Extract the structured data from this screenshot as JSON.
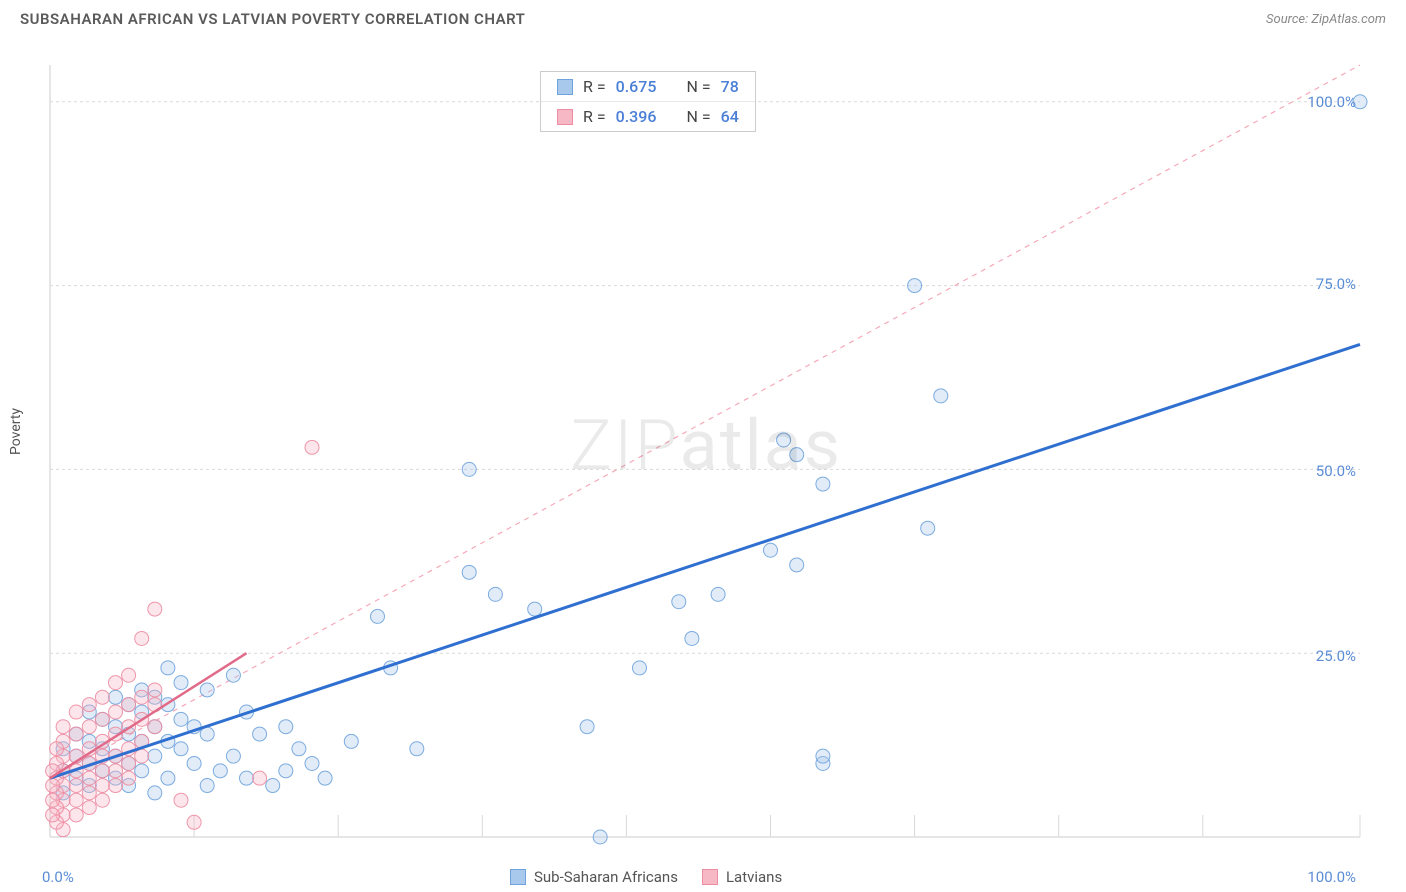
{
  "title": "SUBSAHARAN AFRICAN VS LATVIAN POVERTY CORRELATION CHART",
  "source": "Source: ZipAtlas.com",
  "y_axis_label": "Poverty",
  "watermark": "ZIPatlas",
  "chart": {
    "type": "scatter",
    "xlim": [
      0,
      100
    ],
    "ylim": [
      0,
      105
    ],
    "x_tick_labels": {
      "0": "0.0%",
      "100": "100.0%"
    },
    "y_tick_labels": {
      "25": "25.0%",
      "50": "50.0%",
      "75": "75.0%",
      "100": "100.0%"
    },
    "grid_y": [
      25,
      50,
      75,
      100
    ],
    "grid_x": [
      11,
      22,
      33,
      44,
      55,
      66,
      77,
      88,
      100
    ],
    "grid_color": "#d9d9d9",
    "grid_dash": "3,3",
    "axis_color": "#cccccc",
    "background_color": "#ffffff",
    "marker_radius": 7,
    "marker_fill_opacity": 0.35,
    "marker_stroke_opacity": 0.9,
    "marker_stroke_width": 1,
    "diagonal_reference": {
      "color": "#f5a9b8",
      "dash": "5,5",
      "width": 1.2
    },
    "tick_label_color": "#5a8dd6",
    "tick_label_fontsize": 15
  },
  "series": [
    {
      "key": "ssa",
      "label": "Sub-Saharan Africans",
      "color_fill": "#a8c8ec",
      "color_stroke": "#6fa3dd",
      "n": 78,
      "r": 0.675,
      "regression": {
        "x1": 0,
        "y1": 8,
        "x2": 100,
        "y2": 67,
        "color": "#2f6fd0",
        "width": 3,
        "dash": ""
      },
      "points": [
        [
          100,
          100
        ],
        [
          66,
          75
        ],
        [
          68,
          60
        ],
        [
          67,
          42
        ],
        [
          59,
          48
        ],
        [
          56,
          54
        ],
        [
          57,
          52
        ],
        [
          57,
          37
        ],
        [
          55,
          39
        ],
        [
          51,
          33
        ],
        [
          49,
          27
        ],
        [
          48,
          32
        ],
        [
          45,
          23
        ],
        [
          41,
          15
        ],
        [
          37,
          31
        ],
        [
          34,
          33
        ],
        [
          32,
          36
        ],
        [
          32,
          50
        ],
        [
          26,
          23
        ],
        [
          25,
          30
        ],
        [
          23,
          13
        ],
        [
          21,
          8
        ],
        [
          20,
          10
        ],
        [
          19,
          12
        ],
        [
          18,
          15
        ],
        [
          18,
          9
        ],
        [
          17,
          7
        ],
        [
          16,
          14
        ],
        [
          15,
          17
        ],
        [
          15,
          8
        ],
        [
          14,
          22
        ],
        [
          14,
          11
        ],
        [
          13,
          9
        ],
        [
          12,
          20
        ],
        [
          12,
          14
        ],
        [
          12,
          7
        ],
        [
          11,
          15
        ],
        [
          11,
          10
        ],
        [
          10,
          21
        ],
        [
          10,
          16
        ],
        [
          10,
          12
        ],
        [
          9,
          23
        ],
        [
          9,
          18
        ],
        [
          9,
          13
        ],
        [
          9,
          8
        ],
        [
          8,
          19
        ],
        [
          8,
          15
        ],
        [
          8,
          11
        ],
        [
          8,
          6
        ],
        [
          7,
          20
        ],
        [
          7,
          17
        ],
        [
          7,
          13
        ],
        [
          7,
          9
        ],
        [
          6,
          18
        ],
        [
          6,
          14
        ],
        [
          6,
          10
        ],
        [
          6,
          7
        ],
        [
          5,
          19
        ],
        [
          5,
          15
        ],
        [
          5,
          11
        ],
        [
          5,
          8
        ],
        [
          4,
          16
        ],
        [
          4,
          12
        ],
        [
          4,
          9
        ],
        [
          3,
          17
        ],
        [
          3,
          13
        ],
        [
          3,
          10
        ],
        [
          3,
          7
        ],
        [
          2,
          14
        ],
        [
          2,
          11
        ],
        [
          2,
          8
        ],
        [
          1,
          12
        ],
        [
          1,
          9
        ],
        [
          1,
          6
        ],
        [
          59,
          10
        ],
        [
          59,
          11
        ],
        [
          42,
          0
        ],
        [
          28,
          12
        ]
      ]
    },
    {
      "key": "lat",
      "label": "Latvians",
      "color_fill": "#f6b8c5",
      "color_stroke": "#ed8ca2",
      "n": 64,
      "r": 0.396,
      "regression": {
        "x1": 0,
        "y1": 8,
        "x2": 15,
        "y2": 25,
        "color": "#e06a88",
        "width": 2.5,
        "dash": ""
      },
      "points": [
        [
          20,
          53
        ],
        [
          16,
          8
        ],
        [
          11,
          2
        ],
        [
          10,
          5
        ],
        [
          8,
          31
        ],
        [
          8,
          20
        ],
        [
          8,
          18
        ],
        [
          8,
          15
        ],
        [
          7,
          27
        ],
        [
          7,
          19
        ],
        [
          7,
          16
        ],
        [
          7,
          13
        ],
        [
          7,
          11
        ],
        [
          6,
          22
        ],
        [
          6,
          18
        ],
        [
          6,
          15
        ],
        [
          6,
          12
        ],
        [
          6,
          10
        ],
        [
          6,
          8
        ],
        [
          5,
          21
        ],
        [
          5,
          17
        ],
        [
          5,
          14
        ],
        [
          5,
          11
        ],
        [
          5,
          9
        ],
        [
          5,
          7
        ],
        [
          4,
          19
        ],
        [
          4,
          16
        ],
        [
          4,
          13
        ],
        [
          4,
          11
        ],
        [
          4,
          9
        ],
        [
          4,
          7
        ],
        [
          4,
          5
        ],
        [
          3,
          18
        ],
        [
          3,
          15
        ],
        [
          3,
          12
        ],
        [
          3,
          10
        ],
        [
          3,
          8
        ],
        [
          3,
          6
        ],
        [
          3,
          4
        ],
        [
          2,
          17
        ],
        [
          2,
          14
        ],
        [
          2,
          11
        ],
        [
          2,
          9
        ],
        [
          2,
          7
        ],
        [
          2,
          5
        ],
        [
          2,
          3
        ],
        [
          1,
          15
        ],
        [
          1,
          13
        ],
        [
          1,
          11
        ],
        [
          1,
          9
        ],
        [
          1,
          7
        ],
        [
          1,
          5
        ],
        [
          1,
          3
        ],
        [
          1,
          1
        ],
        [
          0.5,
          12
        ],
        [
          0.5,
          10
        ],
        [
          0.5,
          8
        ],
        [
          0.5,
          6
        ],
        [
          0.5,
          4
        ],
        [
          0.5,
          2
        ],
        [
          0.2,
          9
        ],
        [
          0.2,
          7
        ],
        [
          0.2,
          5
        ],
        [
          0.2,
          3
        ]
      ]
    }
  ],
  "legend_stats": {
    "r_label": "R =",
    "n_label": "N ="
  }
}
